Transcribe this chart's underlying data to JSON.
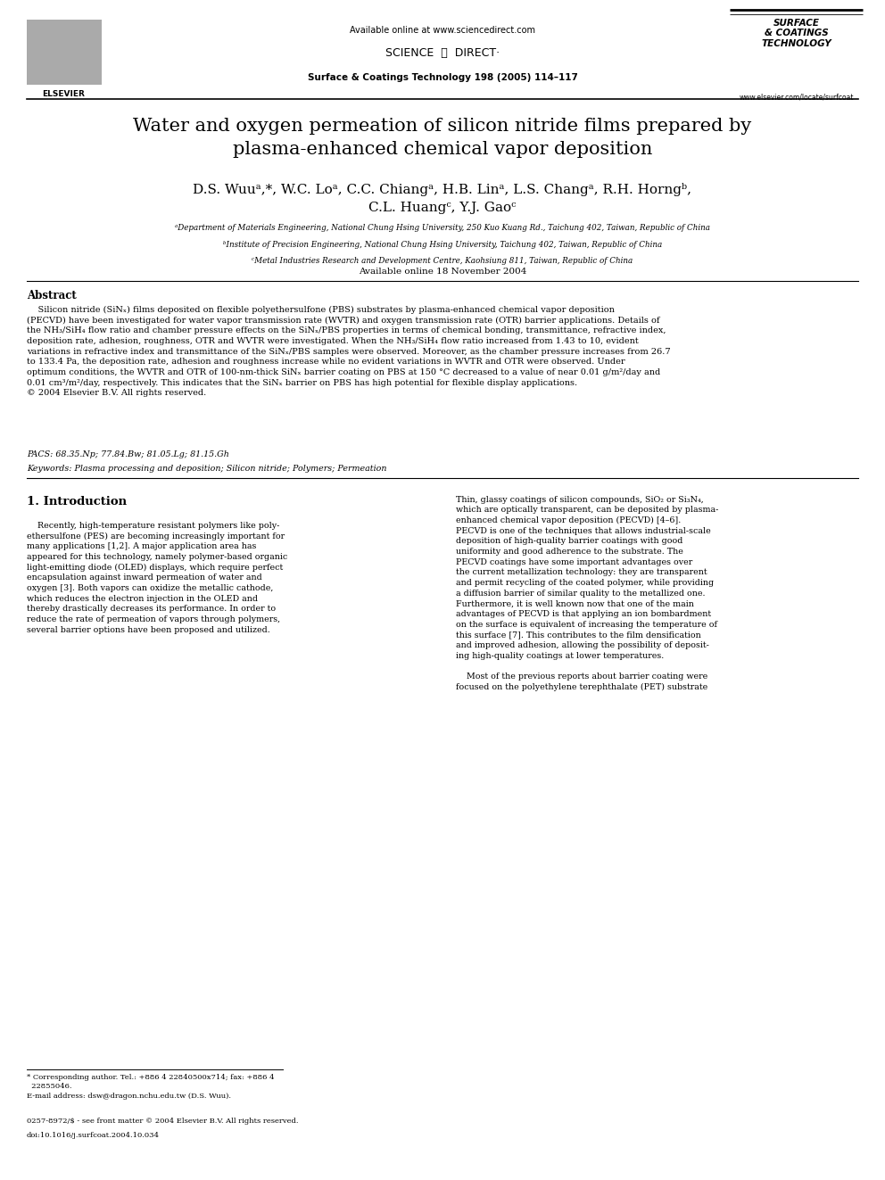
{
  "background_color": "#ffffff",
  "page_width": 9.92,
  "page_height": 13.23,
  "header": {
    "available_online": "Available online at www.sciencedirect.com",
    "journal_line": "Surface & Coatings Technology 198 (2005) 114–117",
    "elsevier_text": "ELSEVIER",
    "website": "www.elsevier.com/locate/surfcoat"
  },
  "title": "Water and oxygen permeation of silicon nitride films prepared by\nplasma-enhanced chemical vapor deposition",
  "author_line1": "D.S. Wuuᵃ,*, W.C. Loᵃ, C.C. Chiangᵃ, H.B. Linᵃ, L.S. Changᵃ, R.H. Horngᵇ,",
  "author_line2": "C.L. Huangᶜ, Y.J. Gaoᶜ",
  "affiliations": [
    "ᵃDepartment of Materials Engineering, National Chung Hsing University, 250 Kuo Kuang Rd., Taichung 402, Taiwan, Republic of China",
    "ᵇInstitute of Precision Engineering, National Chung Hsing University, Taichung 402, Taiwan, Republic of China",
    "ᶜMetal Industries Research and Development Centre, Kaohsiung 811, Taiwan, Republic of China"
  ],
  "available_online_date": "Available online 18 November 2004",
  "abstract_title": "Abstract",
  "abstract_text": "    Silicon nitride (SiNₓ) films deposited on flexible polyethersulfone (PBS) substrates by plasma-enhanced chemical vapor deposition\n(PECVD) have been investigated for water vapor transmission rate (WVTR) and oxygen transmission rate (OTR) barrier applications. Details of\nthe NH₃/SiH₄ flow ratio and chamber pressure effects on the SiNₓ/PBS properties in terms of chemical bonding, transmittance, refractive index,\ndeposition rate, adhesion, roughness, OTR and WVTR were investigated. When the NH₃/SiH₄ flow ratio increased from 1.43 to 10, evident\nvariations in refractive index and transmittance of the SiNₓ/PBS samples were observed. Moreover, as the chamber pressure increases from 26.7\nto 133.4 Pa, the deposition rate, adhesion and roughness increase while no evident variations in WVTR and OTR were observed. Under\noptimum conditions, the WVTR and OTR of 100-nm-thick SiNₓ barrier coating on PBS at 150 °C decreased to a value of near 0.01 g/m²/day and\n0.01 cm³/m²/day, respectively. This indicates that the SiNₓ barrier on PBS has high potential for flexible display applications.\n© 2004 Elsevier B.V. All rights reserved.",
  "pacs": "PACS: 68.35.Np; 77.84.Bw; 81.05.Lg; 81.15.Gh",
  "keywords": "Keywords: Plasma processing and deposition; Silicon nitride; Polymers; Permeation",
  "section1_title": "1. Introduction",
  "section1_left": "    Recently, high-temperature resistant polymers like poly-\nethersulfone (PES) are becoming increasingly important for\nmany applications [1,2]. A major application area has\nappeared for this technology, namely polymer-based organic\nlight-emitting diode (OLED) displays, which require perfect\nencapsulation against inward permeation of water and\noxygen [3]. Both vapors can oxidize the metallic cathode,\nwhich reduces the electron injection in the OLED and\nthereby drastically decreases its performance. In order to\nreduce the rate of permeation of vapors through polymers,\nseveral barrier options have been proposed and utilized.",
  "section1_right": "Thin, glassy coatings of silicon compounds, SiO₂ or Si₃N₄,\nwhich are optically transparent, can be deposited by plasma-\nenhanced chemical vapor deposition (PECVD) [4–6].\nPECVD is one of the techniques that allows industrial-scale\ndeposition of high-quality barrier coatings with good\nuniformity and good adherence to the substrate. The\nPECVD coatings have some important advantages over\nthe current metallization technology: they are transparent\nand permit recycling of the coated polymer, while providing\na diffusion barrier of similar quality to the metallized one.\nFurthermore, it is well known now that one of the main\nadvantages of PECVD is that applying an ion bombardment\non the surface is equivalent of increasing the temperature of\nthis surface [7]. This contributes to the film densification\nand improved adhesion, allowing the possibility of deposit-\ning high-quality coatings at lower temperatures.\n\n    Most of the previous reports about barrier coating were\nfocused on the polyethylene terephthalate (PET) substrate",
  "footnote_star": "* Corresponding author. Tel.: +886 4 22840500x714; fax: +886 4\n  22855046.",
  "footnote_email": "E-mail address: dsw@dragon.nchu.edu.tw (D.S. Wuu).",
  "footer_issn": "0257-8972/$ - see front matter © 2004 Elsevier B.V. All rights reserved.",
  "footer_doi": "doi:10.1016/j.surfcoat.2004.10.034"
}
